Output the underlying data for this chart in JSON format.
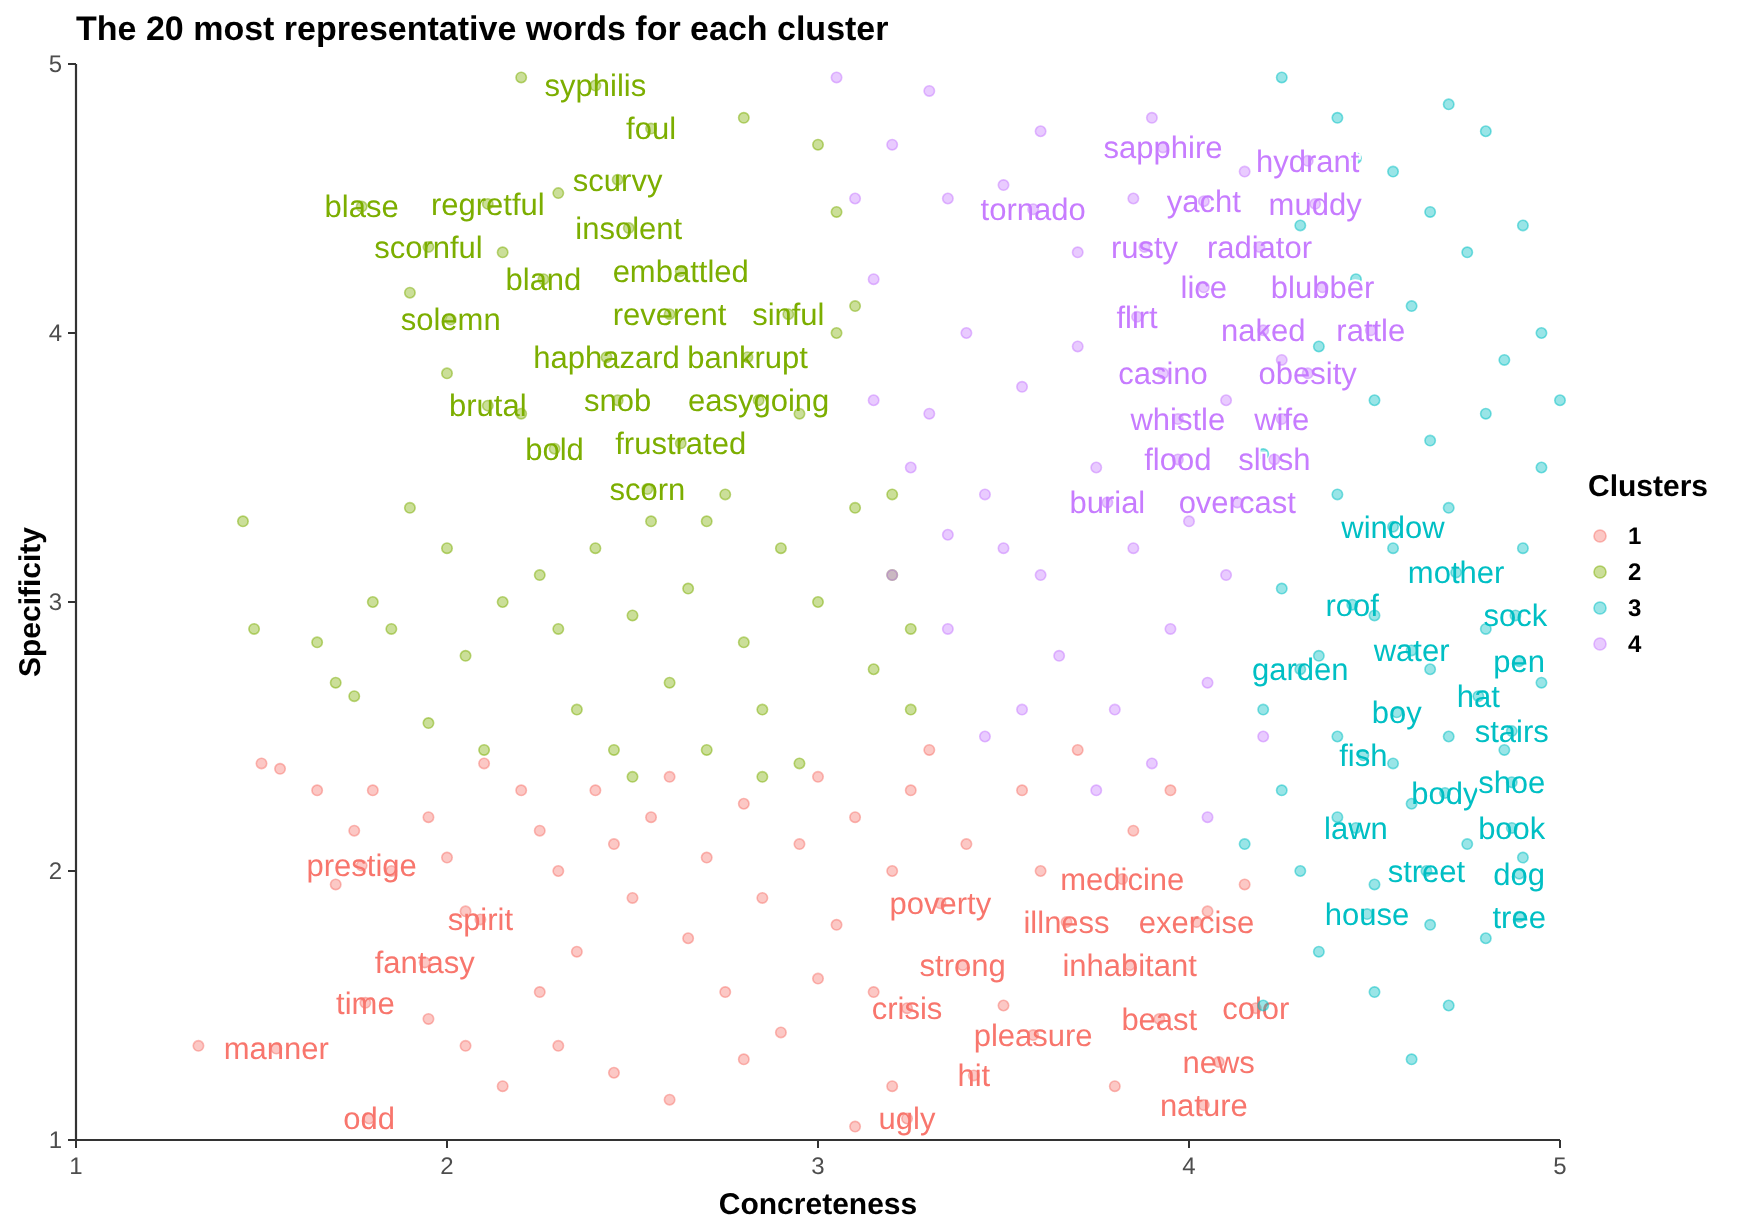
{
  "chart_data": {
    "type": "scatter",
    "title": "The 20 most representative words for each cluster",
    "xlabel": "Concreteness",
    "ylabel": "Specificity",
    "legend_title": "Clusters",
    "legend": "right",
    "marker": "circle",
    "xlim": [
      1,
      5
    ],
    "ylim": [
      1,
      5
    ],
    "xticks": [
      1,
      2,
      3,
      4,
      5
    ],
    "yticks": [
      1,
      2,
      3,
      4,
      5
    ],
    "series": [
      {
        "name": "1",
        "color": "#f8766d",
        "x": [
          1.77,
          2.09,
          1.94,
          1.78,
          1.54,
          1.79,
          3.33,
          3.82,
          3.67,
          4.02,
          3.39,
          3.84,
          3.24,
          3.92,
          4.18,
          3.58,
          3.42,
          4.08,
          4.04,
          3.24,
          1.33,
          1.5,
          1.55,
          1.65,
          1.8,
          1.75,
          1.7,
          1.85,
          1.95,
          2.0,
          2.05,
          2.1,
          2.2,
          2.25,
          2.3,
          2.35,
          2.4,
          2.45,
          2.5,
          2.55,
          2.6,
          2.65,
          2.7,
          2.75,
          2.8,
          2.85,
          2.9,
          2.95,
          3.0,
          3.05,
          3.1,
          3.15,
          3.2,
          3.25,
          2.3,
          2.45,
          2.6,
          2.8,
          3.0,
          1.95,
          2.05,
          3.3,
          3.4,
          3.55,
          3.7,
          3.5,
          3.6,
          3.85,
          3.95,
          4.05,
          4.15,
          3.2,
          3.8,
          2.15,
          3.1,
          2.25
        ],
        "values": [
          2.02,
          1.82,
          1.66,
          1.51,
          1.34,
          1.08,
          1.88,
          1.97,
          1.81,
          1.81,
          1.65,
          1.65,
          1.49,
          1.45,
          1.49,
          1.39,
          1.24,
          1.29,
          1.13,
          1.08,
          1.35,
          2.4,
          2.38,
          2.3,
          2.3,
          2.15,
          1.95,
          2.0,
          2.2,
          2.05,
          1.85,
          2.4,
          2.3,
          2.15,
          2.0,
          1.7,
          2.3,
          2.1,
          1.9,
          2.2,
          2.35,
          1.75,
          2.05,
          1.55,
          2.25,
          1.9,
          1.4,
          2.1,
          2.35,
          1.8,
          2.2,
          1.55,
          2.0,
          2.3,
          1.35,
          1.25,
          1.15,
          1.3,
          1.6,
          1.45,
          1.35,
          2.45,
          2.1,
          2.3,
          2.45,
          1.5,
          2.0,
          2.15,
          2.3,
          1.85,
          1.95,
          1.2,
          1.2,
          1.2,
          1.05,
          1.55
        ],
        "value_labels": [
          "prestige",
          "spirit",
          "fantasy",
          "time",
          "manner",
          "odd",
          "poverty",
          "medicine",
          "illness",
          "exercise",
          "strong",
          "inhabitant",
          "crisis",
          "beast",
          "color",
          "pleasure",
          "hit",
          "news",
          "nature",
          "ugly",
          null,
          null,
          null,
          null,
          null,
          null,
          null,
          null,
          null,
          null,
          null,
          null,
          null,
          null,
          null,
          null,
          null,
          null,
          null,
          null,
          null,
          null,
          null,
          null,
          null,
          null,
          null,
          null,
          null,
          null,
          null,
          null,
          null,
          null,
          null,
          null,
          null,
          null,
          null,
          null,
          null,
          null,
          null,
          null,
          null,
          null,
          null,
          null,
          null,
          null,
          null,
          null,
          null,
          null,
          null,
          null
        ]
      },
      {
        "name": "2",
        "color": "#7cae00",
        "x": [
          2.4,
          2.55,
          2.46,
          1.77,
          2.11,
          2.49,
          1.95,
          2.26,
          2.63,
          2.01,
          2.6,
          2.92,
          2.43,
          2.81,
          2.11,
          2.46,
          2.84,
          2.29,
          2.63,
          2.54,
          1.45,
          1.48,
          1.65,
          1.7,
          1.75,
          1.8,
          1.85,
          1.9,
          1.95,
          2.0,
          2.05,
          2.1,
          2.15,
          2.2,
          2.25,
          2.3,
          2.3,
          2.35,
          2.4,
          2.45,
          2.5,
          2.55,
          2.6,
          2.65,
          2.7,
          2.75,
          2.8,
          2.85,
          2.9,
          2.95,
          3.0,
          3.05,
          3.1,
          3.15,
          3.2,
          3.25,
          3.0,
          2.8,
          3.1,
          2.15,
          1.9,
          2.0,
          2.2,
          2.7,
          2.95,
          3.05,
          2.5,
          2.85,
          3.2,
          3.25
        ],
        "values": [
          4.92,
          4.76,
          4.57,
          4.47,
          4.48,
          4.39,
          4.32,
          4.2,
          4.23,
          4.05,
          4.07,
          4.07,
          3.91,
          3.91,
          3.73,
          3.75,
          3.75,
          3.57,
          3.59,
          3.42,
          3.3,
          2.9,
          2.85,
          2.7,
          2.65,
          3.0,
          2.9,
          3.35,
          2.55,
          3.2,
          2.8,
          2.45,
          3.0,
          4.95,
          3.1,
          2.9,
          4.52,
          2.6,
          3.2,
          2.45,
          2.95,
          3.3,
          2.7,
          3.05,
          2.45,
          3.4,
          2.85,
          2.6,
          3.2,
          2.4,
          3.0,
          4.45,
          3.35,
          2.75,
          3.1,
          2.9,
          4.7,
          4.8,
          4.1,
          4.3,
          4.15,
          3.85,
          3.7,
          3.3,
          3.7,
          4.0,
          2.35,
          2.35,
          3.4,
          2.6
        ],
        "value_labels": [
          "syphilis",
          "foul",
          "scurvy",
          "blase",
          "regretful",
          "insolent",
          "scornful",
          "bland",
          "embattled",
          "solemn",
          "reverent",
          "sinful",
          "haphazard",
          "bankrupt",
          "brutal",
          "snob",
          "easygoing",
          "bold",
          "frustrated",
          "scorn",
          null,
          null,
          null,
          null,
          null,
          null,
          null,
          null,
          null,
          null,
          null,
          null,
          null,
          null,
          null,
          null,
          null,
          null,
          null,
          null,
          null,
          null,
          null,
          null,
          null,
          null,
          null,
          null,
          null,
          null,
          null,
          null,
          null,
          null,
          null,
          null,
          null,
          null,
          null,
          null,
          null,
          null,
          null,
          null,
          null,
          null,
          null,
          null,
          null,
          null
        ]
      },
      {
        "name": "3",
        "color": "#00bfc4",
        "x": [
          4.55,
          4.72,
          4.44,
          4.88,
          4.6,
          4.3,
          4.89,
          4.56,
          4.78,
          4.47,
          4.87,
          4.69,
          4.87,
          4.45,
          4.87,
          4.64,
          4.89,
          4.48,
          4.89,
          4.25,
          4.4,
          4.55,
          4.7,
          4.8,
          4.9,
          4.95,
          4.3,
          4.45,
          4.6,
          4.75,
          4.85,
          4.35,
          4.5,
          4.65,
          4.8,
          4.95,
          4.2,
          4.4,
          4.55,
          4.7,
          4.9,
          4.25,
          4.35,
          4.5,
          4.65,
          4.8,
          4.95,
          4.2,
          4.4,
          4.55,
          4.7,
          4.85,
          4.25,
          4.4,
          4.6,
          4.75,
          4.9,
          4.3,
          4.5,
          4.65,
          4.8,
          4.35,
          4.5,
          4.7,
          4.6,
          4.15,
          4.2,
          4.45,
          4.65,
          5.0
        ],
        "values": [
          3.28,
          3.11,
          2.99,
          2.95,
          2.82,
          2.75,
          2.78,
          2.59,
          2.65,
          2.43,
          2.52,
          2.29,
          2.33,
          2.16,
          2.16,
          2.0,
          1.99,
          1.84,
          1.83,
          4.95,
          4.8,
          4.6,
          4.85,
          4.75,
          4.4,
          4.0,
          4.4,
          4.2,
          4.1,
          4.3,
          3.9,
          3.95,
          3.75,
          3.6,
          3.7,
          3.5,
          3.55,
          3.4,
          3.2,
          3.35,
          3.2,
          3.05,
          2.8,
          2.95,
          2.75,
          2.9,
          2.7,
          2.6,
          2.5,
          2.4,
          2.5,
          2.45,
          2.3,
          2.2,
          2.25,
          2.1,
          2.05,
          2.0,
          1.95,
          1.8,
          1.75,
          1.7,
          1.55,
          1.5,
          1.3,
          2.1,
          1.5,
          4.65,
          4.45,
          3.75
        ],
        "value_labels": [
          "window",
          "mother",
          "roof",
          "sock",
          "water",
          "garden",
          "pen",
          "boy",
          "hat",
          "fish",
          "stairs",
          "body",
          "shoe",
          "lawn",
          "book",
          "street",
          "dog",
          "house",
          "tree",
          null,
          null,
          null,
          null,
          null,
          null,
          null,
          null,
          null,
          null,
          null,
          null,
          null,
          null,
          null,
          null,
          null,
          null,
          null,
          null,
          null,
          null,
          null,
          null,
          null,
          null,
          null,
          null,
          null,
          null,
          null,
          null,
          null,
          null,
          null,
          null,
          null,
          null,
          null,
          null,
          null,
          null,
          null,
          null,
          null,
          null,
          null,
          null,
          null,
          null,
          null
        ]
      },
      {
        "name": "4",
        "color": "#c77cff",
        "x": [
          3.93,
          4.32,
          3.58,
          4.04,
          4.34,
          3.88,
          4.19,
          4.04,
          4.36,
          3.86,
          4.2,
          4.49,
          3.93,
          4.32,
          3.97,
          4.25,
          3.97,
          4.23,
          3.78,
          4.13,
          3.05,
          3.2,
          3.3,
          3.1,
          3.35,
          3.15,
          3.4,
          3.3,
          3.45,
          3.2,
          3.35,
          3.5,
          3.55,
          3.6,
          3.65,
          3.7,
          3.75,
          3.8,
          3.85,
          3.9,
          3.95,
          4.0,
          4.05,
          4.1,
          4.15,
          4.2,
          4.25,
          3.6,
          3.25,
          3.45,
          3.75,
          3.9,
          4.05,
          3.55,
          3.15,
          3.85,
          4.1,
          3.5,
          3.7,
          3.35
        ],
        "values": [
          4.69,
          4.64,
          4.46,
          4.49,
          4.48,
          4.32,
          4.32,
          4.17,
          4.17,
          4.06,
          4.01,
          4.01,
          3.85,
          3.85,
          3.68,
          3.68,
          3.53,
          3.53,
          3.37,
          3.37,
          4.95,
          4.7,
          4.9,
          4.5,
          4.5,
          4.2,
          4.0,
          3.7,
          3.4,
          3.1,
          2.9,
          3.2,
          3.8,
          3.1,
          2.8,
          4.3,
          3.5,
          2.6,
          3.2,
          4.8,
          2.9,
          3.3,
          2.7,
          3.1,
          4.6,
          2.5,
          3.9,
          4.75,
          3.5,
          2.5,
          2.3,
          2.4,
          2.2,
          2.6,
          3.75,
          4.5,
          3.75,
          4.55,
          3.95,
          3.25
        ],
        "value_labels": [
          "sapphire",
          "hydrant",
          "tornado",
          "yacht",
          "muddy",
          "rusty",
          "radiator",
          "lice",
          "blubber",
          "flirt",
          "naked",
          "rattle",
          "casino",
          "obesity",
          "whistle",
          "wife",
          "flood",
          "slush",
          "burial",
          "overcast",
          null,
          null,
          null,
          null,
          null,
          null,
          null,
          null,
          null,
          null,
          null,
          null,
          null,
          null,
          null,
          null,
          null,
          null,
          null,
          null,
          null,
          null,
          null,
          null,
          null,
          null,
          null,
          null,
          null,
          null,
          null,
          null,
          null,
          null,
          null,
          null,
          null,
          null,
          null,
          null
        ]
      }
    ]
  }
}
